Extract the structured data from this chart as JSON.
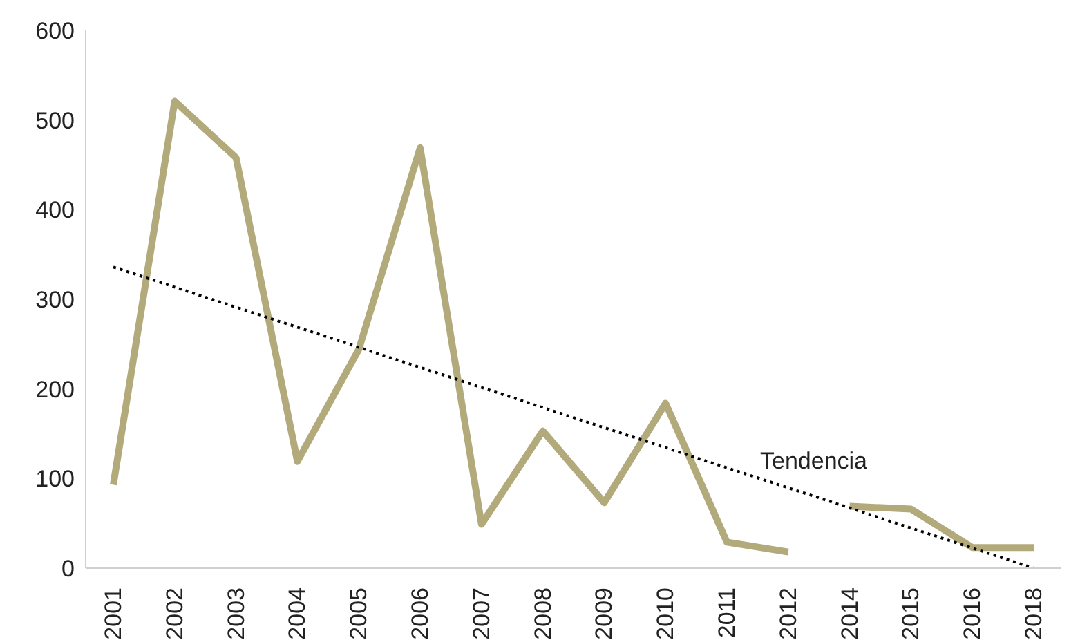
{
  "chart_data": {
    "type": "line",
    "categories": [
      "2001",
      "2002",
      "2003",
      "2004",
      "2005",
      "2006",
      "2007",
      "2008",
      "2009",
      "2010",
      "2011",
      "2012",
      "2014",
      "2015",
      "2016",
      "2018"
    ],
    "series": [
      {
        "color": "#b3aa7c",
        "values": [
          93,
          521,
          458,
          119,
          244,
          469,
          49,
          153,
          73,
          184,
          29,
          18,
          null,
          null,
          null,
          null
        ]
      },
      {
        "color": "#b3aa7c",
        "values": [
          null,
          null,
          null,
          null,
          null,
          null,
          null,
          null,
          null,
          null,
          null,
          null,
          69,
          66,
          23,
          23
        ]
      },
      {
        "type": "line",
        "color": "#000000",
        "line_style": "dotted",
        "values": [
          336,
          null,
          null,
          null,
          null,
          null,
          null,
          null,
          null,
          null,
          null,
          null,
          null,
          null,
          null,
          0
        ]
      }
    ],
    "ylim": [
      0,
      600
    ],
    "yticks": [
      0,
      100,
      200,
      300,
      400,
      500,
      600
    ],
    "marker": "none",
    "line_style": "solid",
    "annotations": [
      "Tendencia"
    ]
  }
}
